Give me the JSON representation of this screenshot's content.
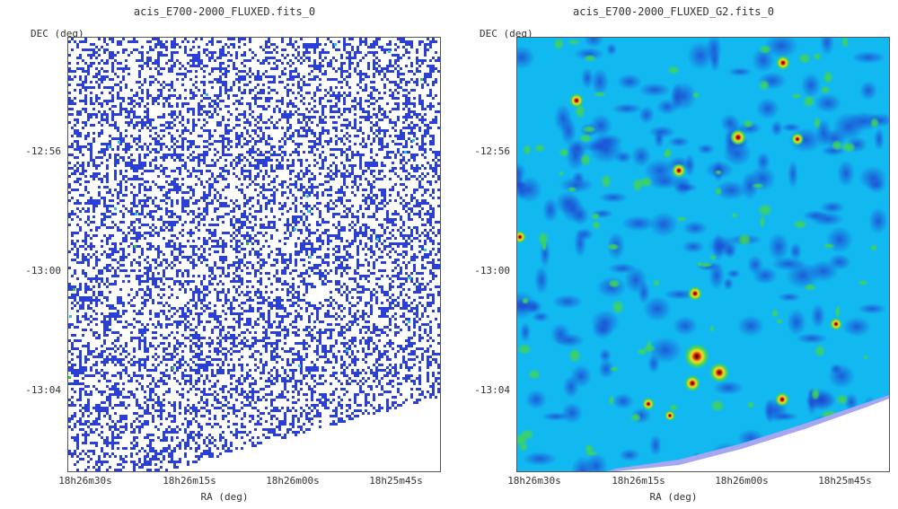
{
  "panels": [
    {
      "title": "acis_E700-2000_FLUXED.fits_0",
      "y_label": "DEC (deg)",
      "x_label": "RA (deg)",
      "y_ticks": [
        "-12:56",
        "-13:00",
        "-13:04"
      ],
      "x_ticks": [
        "18h26m30s",
        "18h26m15s",
        "18h26m00s",
        "18h25m45s"
      ],
      "style": "sparse-counts",
      "colors": {
        "count": "#2a3fd6",
        "bright": "#22c6e0",
        "hot": "#28c43a"
      }
    },
    {
      "title": "acis_E700-2000_FLUXED_G2.fits_0",
      "y_label": "DEC (deg)",
      "x_label": "RA (deg)",
      "y_ticks": [
        "-12:56",
        "-13:00",
        "-13:04"
      ],
      "x_ticks": [
        "18h26m30s",
        "18h26m15s",
        "18h26m00s",
        "18h25m45s"
      ],
      "style": "smoothed",
      "colors": {
        "low": "#1f3fd0",
        "mid": "#12b8f0",
        "high": "#3fd45a",
        "peak": "#f0e020",
        "max": "#e02010",
        "edge": "#a7a6f0"
      }
    }
  ]
}
